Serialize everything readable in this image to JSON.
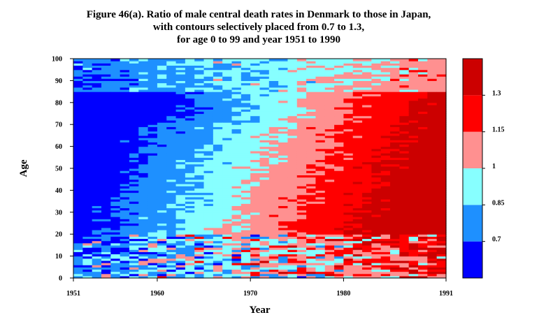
{
  "chart_data": {
    "type": "heatmap",
    "title_lines": [
      "Figure 46(a). Ratio of male central death rates in Denmark to those in Japan,",
      "with contours selectively placed from 0.7 to 1.3,",
      "for age 0 to 99 and year 1951 to 1990"
    ],
    "xlabel": "Year",
    "ylabel": "Age",
    "xlim": [
      1951,
      1991
    ],
    "ylim": [
      0,
      100
    ],
    "x_ticks": [
      "1951",
      "1960",
      "1970",
      "1980",
      "1991"
    ],
    "y_ticks": [
      "0",
      "10",
      "20",
      "30",
      "40",
      "50",
      "60",
      "70",
      "80",
      "90",
      "100"
    ],
    "legend": {
      "position": "right",
      "bins": [
        {
          "range": "< 0.7",
          "color": "#0000ff"
        },
        {
          "range": "0.7 - 0.85",
          "color": "#1e90ff"
        },
        {
          "range": "0.85 - 1",
          "color": "#87ffff"
        },
        {
          "range": "1 - 1.15",
          "color": "#ff9090"
        },
        {
          "range": "1.15 - 1.3",
          "color": "#ff0000"
        },
        {
          "range": "> 1.3",
          "color": "#cc0000"
        }
      ],
      "labels": [
        "0.7",
        "0.85",
        "1",
        "1.15",
        "1.3"
      ]
    },
    "bin_regions_approx": [
      {
        "years": "1951-1962",
        "ages": "0-80",
        "bin": "< 0.7"
      },
      {
        "years": "1951-1962",
        "ages": "80-99",
        "bin": "0.7 - 0.85"
      },
      {
        "years": "1962-1972",
        "ages": "20-90",
        "bin": "0.7 - 0.85"
      },
      {
        "years": "1970-1976",
        "ages": "30-75",
        "bin": "0.85 - 1"
      },
      {
        "years": "1974-1980",
        "ages": "40-80",
        "bin": "1 - 1.15"
      },
      {
        "years": "1976-1991",
        "ages": "20-80",
        "bin": "1.15 - 1.3"
      },
      {
        "years": "1980-1991",
        "ages": "25-70",
        "bin": "> 1.3"
      },
      {
        "years": "1978-1991",
        "ages": "80-99",
        "bin": "1 - 1.15"
      },
      {
        "years": "1962-1991",
        "ages": "0-20",
        "bin": "mixed"
      }
    ]
  }
}
